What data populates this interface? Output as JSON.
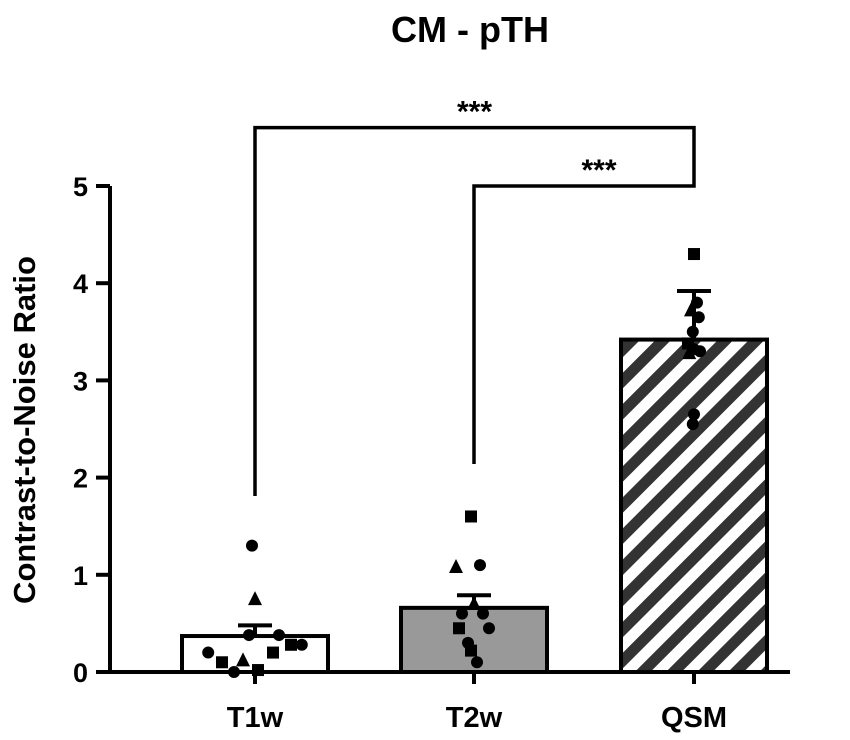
{
  "chart_data": {
    "type": "bar",
    "title": "CM - pTH",
    "xlabel": "",
    "ylabel": "Contrast-to-Noise Ratio",
    "ylim": [
      0,
      5
    ],
    "yticks": [
      "0",
      "1",
      "2",
      "3",
      "4",
      "5"
    ],
    "categories": [
      "T1w",
      "T2w",
      "QSM"
    ],
    "values": [
      0.37,
      0.66,
      3.42
    ],
    "errors": [
      0.11,
      0.13,
      0.5
    ],
    "fills": [
      "white",
      "#999999",
      "hatch"
    ],
    "points": [
      [
        {
          "x": -0.78,
          "y": 0.2,
          "m": "circle"
        },
        {
          "x": -0.55,
          "y": 0.1,
          "m": "square"
        },
        {
          "x": -0.35,
          "y": 0.0,
          "m": "circle"
        },
        {
          "x": -0.2,
          "y": 0.12,
          "m": "triangle"
        },
        {
          "x": -0.05,
          "y": 1.3,
          "m": "circle"
        },
        {
          "x": 0.0,
          "y": 0.75,
          "m": "triangle"
        },
        {
          "x": 0.05,
          "y": 0.02,
          "m": "square"
        },
        {
          "x": -0.1,
          "y": 0.38,
          "m": "circle"
        },
        {
          "x": 0.3,
          "y": 0.2,
          "m": "square"
        },
        {
          "x": 0.4,
          "y": 0.38,
          "m": "circle"
        },
        {
          "x": 0.6,
          "y": 0.28,
          "m": "square"
        },
        {
          "x": 0.78,
          "y": 0.28,
          "m": "circle"
        }
      ],
      [
        {
          "x": -0.05,
          "y": 1.6,
          "m": "square"
        },
        {
          "x": -0.3,
          "y": 1.08,
          "m": "triangle"
        },
        {
          "x": 0.1,
          "y": 1.1,
          "m": "circle"
        },
        {
          "x": 0.0,
          "y": 0.7,
          "m": "triangle"
        },
        {
          "x": -0.2,
          "y": 0.6,
          "m": "circle"
        },
        {
          "x": 0.15,
          "y": 0.6,
          "m": "circle"
        },
        {
          "x": -0.25,
          "y": 0.45,
          "m": "square"
        },
        {
          "x": 0.25,
          "y": 0.45,
          "m": "circle"
        },
        {
          "x": -0.1,
          "y": 0.3,
          "m": "circle"
        },
        {
          "x": -0.05,
          "y": 0.22,
          "m": "square"
        },
        {
          "x": 0.05,
          "y": 0.1,
          "m": "circle"
        }
      ],
      [
        {
          "x": 0.0,
          "y": 4.3,
          "m": "square"
        },
        {
          "x": 0.05,
          "y": 3.8,
          "m": "circle"
        },
        {
          "x": -0.05,
          "y": 3.72,
          "m": "triangle"
        },
        {
          "x": 0.08,
          "y": 3.65,
          "m": "circle"
        },
        {
          "x": -0.02,
          "y": 3.5,
          "m": "circle"
        },
        {
          "x": -0.1,
          "y": 3.38,
          "m": "square"
        },
        {
          "x": 0.0,
          "y": 3.32,
          "m": "circle"
        },
        {
          "x": 0.1,
          "y": 3.3,
          "m": "circle"
        },
        {
          "x": -0.08,
          "y": 3.28,
          "m": "triangle"
        },
        {
          "x": 0.0,
          "y": 2.65,
          "m": "circle"
        },
        {
          "x": -0.02,
          "y": 2.55,
          "m": "circle"
        }
      ]
    ],
    "comparisons": [
      {
        "from": 0,
        "to": 2,
        "y": 5.6,
        "label": "***"
      },
      {
        "from": 1,
        "to": 2,
        "y": 5.0,
        "label": "***"
      }
    ]
  }
}
